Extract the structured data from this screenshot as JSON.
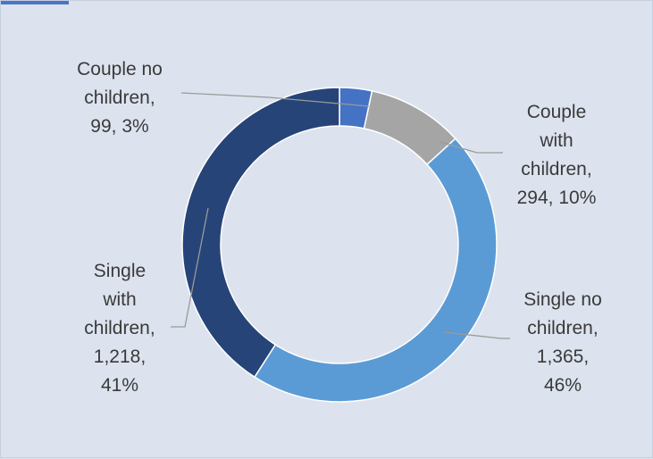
{
  "chart_data": {
    "type": "donut",
    "title": "",
    "slices": [
      {
        "label": "Couple no children",
        "value": 99,
        "percent": "3%",
        "color": "#4472c4",
        "label_lines": [
          "Couple no",
          "children,",
          "99, 3%"
        ]
      },
      {
        "label": "Couple with children",
        "value": 294,
        "percent": "10%",
        "color": "#a5a5a5",
        "label_lines": [
          "Couple",
          "with",
          "children,",
          "294, 10%"
        ]
      },
      {
        "label": "Single no children",
        "value": 1365,
        "percent": "46%",
        "color": "#5b9bd5",
        "label_lines": [
          "Single no",
          "children,",
          "1,365,",
          "46%"
        ]
      },
      {
        "label": "Single with children",
        "value": 1218,
        "percent": "41%",
        "color": "#264478",
        "label_lines": [
          "Single",
          "with",
          "children,",
          "1,218,",
          "41%"
        ]
      }
    ],
    "legend": "none",
    "data_labels": "outside with leader lines"
  }
}
